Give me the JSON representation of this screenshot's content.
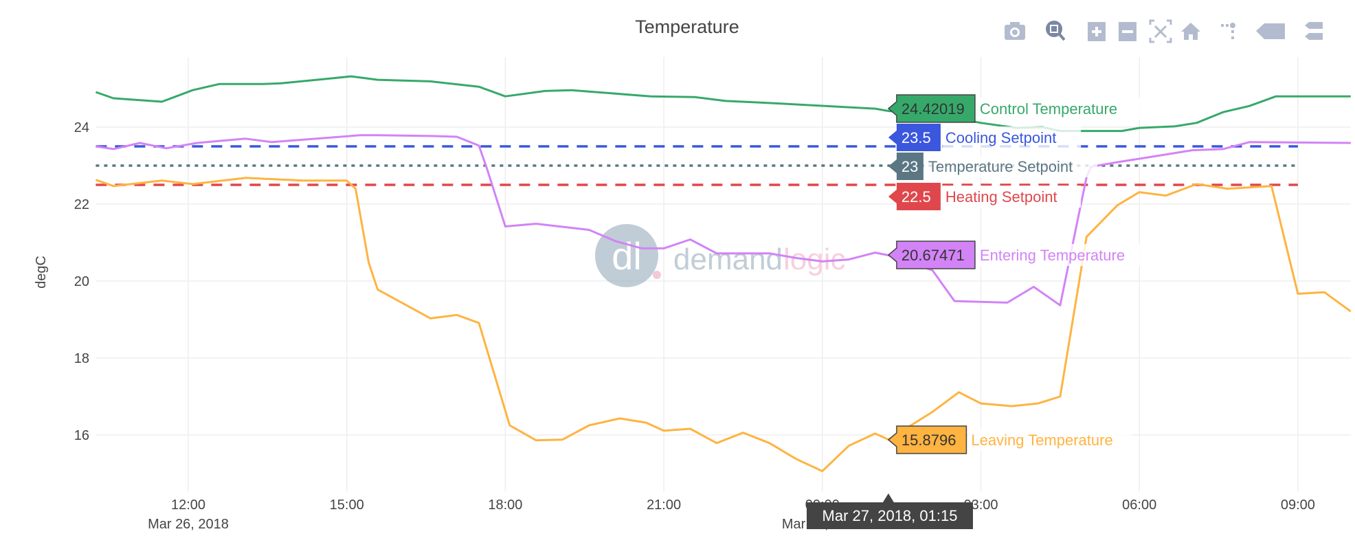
{
  "toolbar": {
    "icons": [
      "camera-icon",
      "zoom-icon",
      "zoom-in-icon",
      "zoom-out-icon",
      "autoscale-icon",
      "home-icon",
      "spikelines-icon",
      "hover-closest-icon",
      "hover-compare-icon"
    ],
    "active": "zoom-icon"
  },
  "watermark": {
    "part1": "demand",
    "part2": "logic",
    "monogram": "dl"
  },
  "chart_data": {
    "type": "line",
    "title": "Temperature",
    "xlabel": "",
    "ylabel": "degC",
    "xlim": [
      "2018-03-26 10:15",
      "2018-03-27 10:00"
    ],
    "ylim": [
      14.5,
      25.8
    ],
    "grid": true,
    "x_ticks": [
      {
        "t": "2018-03-26 12:00",
        "label": "12:00",
        "sub": "Mar 26, 2018"
      },
      {
        "t": "2018-03-26 15:00",
        "label": "15:00",
        "sub": ""
      },
      {
        "t": "2018-03-26 18:00",
        "label": "18:00",
        "sub": ""
      },
      {
        "t": "2018-03-26 21:00",
        "label": "21:00",
        "sub": ""
      },
      {
        "t": "2018-03-27 00:00",
        "label": "00:00",
        "sub": "Mar 27, 2018"
      },
      {
        "t": "2018-03-27 03:00",
        "label": "03:00",
        "sub": ""
      },
      {
        "t": "2018-03-27 06:00",
        "label": "06:00",
        "sub": ""
      },
      {
        "t": "2018-03-27 09:00",
        "label": "09:00",
        "sub": ""
      }
    ],
    "y_ticks": [
      16,
      18,
      20,
      22,
      24
    ],
    "hover": {
      "x_label": "Mar 27, 2018, 01:15",
      "t": "2018-03-27 01:15",
      "labels": [
        {
          "series": "Control Temperature",
          "value": "24.42019"
        },
        {
          "series": "Cooling Setpoint",
          "value": "23.5"
        },
        {
          "series": "Temperature Setpoint",
          "value": "23"
        },
        {
          "series": "Heating Setpoint",
          "value": "22.5"
        },
        {
          "series": "Entering Temperature",
          "value": "20.67471"
        },
        {
          "series": "Leaving Temperature",
          "value": "15.8796"
        }
      ]
    },
    "series": [
      {
        "name": "Control Temperature",
        "color": "#36a96a",
        "dash": "solid",
        "points": [
          [
            "2018-03-26 10:15",
            24.91
          ],
          [
            "2018-03-26 10:35",
            24.75
          ],
          [
            "2018-03-26 11:30",
            24.66
          ],
          [
            "2018-03-26 12:05",
            24.96
          ],
          [
            "2018-03-26 12:35",
            25.12
          ],
          [
            "2018-03-26 13:25",
            25.12
          ],
          [
            "2018-03-26 13:45",
            25.14
          ],
          [
            "2018-03-26 14:35",
            25.25
          ],
          [
            "2018-03-26 15:05",
            25.32
          ],
          [
            "2018-03-26 15:35",
            25.23
          ],
          [
            "2018-03-26 16:35",
            25.19
          ],
          [
            "2018-03-26 17:30",
            25.05
          ],
          [
            "2018-03-26 18:00",
            24.8
          ],
          [
            "2018-03-26 18:45",
            24.94
          ],
          [
            "2018-03-26 19:15",
            24.96
          ],
          [
            "2018-03-26 20:45",
            24.8
          ],
          [
            "2018-03-26 21:35",
            24.78
          ],
          [
            "2018-03-26 22:10",
            24.68
          ],
          [
            "2018-03-26 22:50",
            24.64
          ],
          [
            "2018-03-27 01:00",
            24.48
          ],
          [
            "2018-03-27 01:15",
            24.42
          ],
          [
            "2018-03-27 02:10",
            24.32
          ],
          [
            "2018-03-27 03:00",
            24.11
          ],
          [
            "2018-03-27 03:40",
            23.98
          ],
          [
            "2018-03-27 04:10",
            24.0
          ],
          [
            "2018-03-27 04:30",
            23.9
          ],
          [
            "2018-03-27 05:40",
            23.9
          ],
          [
            "2018-03-27 06:00",
            23.98
          ],
          [
            "2018-03-27 06:40",
            24.02
          ],
          [
            "2018-03-27 07:05",
            24.11
          ],
          [
            "2018-03-27 07:35",
            24.39
          ],
          [
            "2018-03-27 08:05",
            24.55
          ],
          [
            "2018-03-27 08:35",
            24.8
          ],
          [
            "2018-03-27 10:00",
            24.8
          ]
        ]
      },
      {
        "name": "Cooling Setpoint",
        "color": "#3a57dd",
        "dash": "dash",
        "points": [
          [
            "2018-03-26 10:15",
            23.5
          ],
          [
            "2018-03-27 09:00",
            23.5
          ]
        ]
      },
      {
        "name": "Temperature Setpoint",
        "color": "#5b7783",
        "dash": "dot",
        "points": [
          [
            "2018-03-26 10:15",
            23
          ],
          [
            "2018-03-27 09:00",
            23
          ]
        ]
      },
      {
        "name": "Heating Setpoint",
        "color": "#e0474c",
        "dash": "dash",
        "points": [
          [
            "2018-03-26 10:15",
            22.5
          ],
          [
            "2018-03-27 09:00",
            22.5
          ]
        ]
      },
      {
        "name": "Entering Temperature",
        "color": "#d283f6",
        "dash": "solid",
        "points": [
          [
            "2018-03-26 10:15",
            23.5
          ],
          [
            "2018-03-26 10:35",
            23.43
          ],
          [
            "2018-03-26 11:05",
            23.59
          ],
          [
            "2018-03-26 11:35",
            23.45
          ],
          [
            "2018-03-26 12:10",
            23.59
          ],
          [
            "2018-03-26 13:05",
            23.7
          ],
          [
            "2018-03-26 13:35",
            23.61
          ],
          [
            "2018-03-26 15:15",
            23.79
          ],
          [
            "2018-03-26 15:35",
            23.79
          ],
          [
            "2018-03-26 16:35",
            23.77
          ],
          [
            "2018-03-26 17:05",
            23.75
          ],
          [
            "2018-03-26 17:30",
            23.52
          ],
          [
            "2018-03-26 17:40",
            22.86
          ],
          [
            "2018-03-26 18:00",
            21.42
          ],
          [
            "2018-03-26 18:35",
            21.49
          ],
          [
            "2018-03-26 19:35",
            21.33
          ],
          [
            "2018-03-26 20:05",
            21.04
          ],
          [
            "2018-03-26 20:35",
            20.85
          ],
          [
            "2018-03-26 21:00",
            20.85
          ],
          [
            "2018-03-26 21:30",
            21.08
          ],
          [
            "2018-03-26 22:00",
            20.72
          ],
          [
            "2018-03-26 23:00",
            20.72
          ],
          [
            "2018-03-26 23:30",
            20.6
          ],
          [
            "2018-03-27 00:00",
            20.51
          ],
          [
            "2018-03-27 00:30",
            20.56
          ],
          [
            "2018-03-27 01:00",
            20.74
          ],
          [
            "2018-03-27 01:15",
            20.67
          ],
          [
            "2018-03-27 02:05",
            20.28
          ],
          [
            "2018-03-27 02:30",
            19.48
          ],
          [
            "2018-03-27 03:30",
            19.44
          ],
          [
            "2018-03-27 04:00",
            19.85
          ],
          [
            "2018-03-27 04:30",
            19.37
          ],
          [
            "2018-03-27 04:50",
            21.6
          ],
          [
            "2018-03-27 05:00",
            22.7
          ],
          [
            "2018-03-27 05:05",
            22.97
          ],
          [
            "2018-03-27 05:35",
            23.09
          ],
          [
            "2018-03-27 06:25",
            23.27
          ],
          [
            "2018-03-27 07:00",
            23.4
          ],
          [
            "2018-03-27 07:35",
            23.43
          ],
          [
            "2018-03-27 08:05",
            23.61
          ],
          [
            "2018-03-27 10:00",
            23.59
          ]
        ]
      },
      {
        "name": "Leaving Temperature",
        "color": "#ffb340",
        "dash": "solid",
        "points": [
          [
            "2018-03-26 10:15",
            22.63
          ],
          [
            "2018-03-26 10:35",
            22.47
          ],
          [
            "2018-03-26 11:30",
            22.61
          ],
          [
            "2018-03-26 12:05",
            22.52
          ],
          [
            "2018-03-26 13:05",
            22.68
          ],
          [
            "2018-03-26 13:35",
            22.65
          ],
          [
            "2018-03-26 14:10",
            22.61
          ],
          [
            "2018-03-26 15:00",
            22.61
          ],
          [
            "2018-03-26 15:10",
            22.4
          ],
          [
            "2018-03-26 15:25",
            20.47
          ],
          [
            "2018-03-26 15:35",
            19.78
          ],
          [
            "2018-03-26 16:35",
            19.03
          ],
          [
            "2018-03-26 17:05",
            19.12
          ],
          [
            "2018-03-26 17:30",
            18.91
          ],
          [
            "2018-03-26 17:35",
            18.53
          ],
          [
            "2018-03-26 18:05",
            16.25
          ],
          [
            "2018-03-26 18:35",
            15.86
          ],
          [
            "2018-03-26 19:05",
            15.88
          ],
          [
            "2018-03-26 19:35",
            16.25
          ],
          [
            "2018-03-26 20:10",
            16.43
          ],
          [
            "2018-03-26 20:40",
            16.32
          ],
          [
            "2018-03-26 21:00",
            16.11
          ],
          [
            "2018-03-26 21:30",
            16.16
          ],
          [
            "2018-03-26 22:00",
            15.79
          ],
          [
            "2018-03-26 22:30",
            16.06
          ],
          [
            "2018-03-26 23:00",
            15.79
          ],
          [
            "2018-03-26 23:30",
            15.38
          ],
          [
            "2018-03-27 00:00",
            15.06
          ],
          [
            "2018-03-27 00:30",
            15.72
          ],
          [
            "2018-03-27 01:00",
            16.04
          ],
          [
            "2018-03-27 01:15",
            15.88
          ],
          [
            "2018-03-27 02:05",
            16.6
          ],
          [
            "2018-03-27 02:35",
            17.11
          ],
          [
            "2018-03-27 03:00",
            16.82
          ],
          [
            "2018-03-27 03:35",
            16.75
          ],
          [
            "2018-03-27 04:05",
            16.82
          ],
          [
            "2018-03-27 04:30",
            17.0
          ],
          [
            "2018-03-27 05:00",
            21.15
          ],
          [
            "2018-03-27 05:35",
            21.97
          ],
          [
            "2018-03-27 06:00",
            22.31
          ],
          [
            "2018-03-27 06:30",
            22.22
          ],
          [
            "2018-03-27 07:05",
            22.52
          ],
          [
            "2018-03-27 07:40",
            22.4
          ],
          [
            "2018-03-27 08:30",
            22.47
          ],
          [
            "2018-03-27 09:00",
            19.67
          ],
          [
            "2018-03-27 09:30",
            19.71
          ],
          [
            "2018-03-27 10:00",
            19.21
          ]
        ]
      }
    ]
  }
}
